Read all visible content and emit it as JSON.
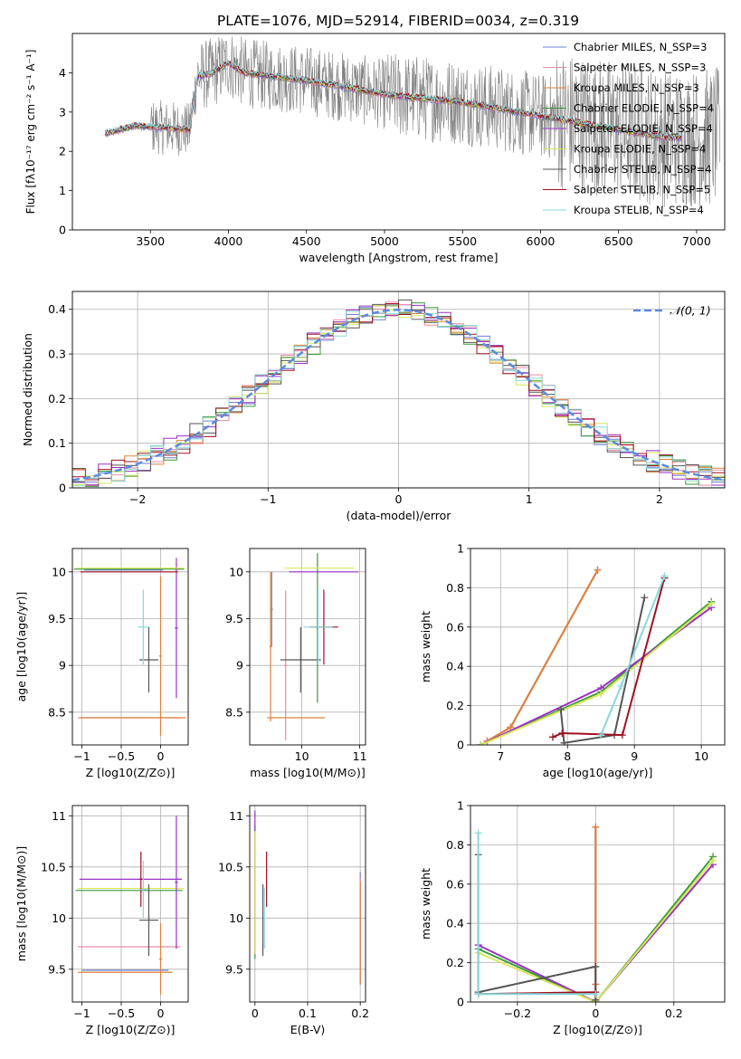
{
  "figure_title": "PLATE=1076, MJD=52914, FIBERID=0034, z=0.319",
  "colors": {
    "chabrier_miles": "#6f7fd8",
    "salpeter_miles": "#e88aa8",
    "kroupa_miles": "#e0823a",
    "chabrier_elodie": "#3c9a3c",
    "salpeter_elodie": "#9b30c8",
    "kroupa_elodie": "#d6e85a",
    "chabrier_stelib": "#555555",
    "salpeter_stelib": "#a01020",
    "kroupa_stelib": "#88d8dc",
    "data": "#7f7f7f",
    "gaussian": "#5b8be0"
  },
  "chart_data": [
    {
      "id": "spectrum",
      "type": "line",
      "xlabel": "wavelength [Angstrom, rest frame]",
      "ylabel": "Flux [fλ10⁻¹⁷ erg cm⁻² s⁻¹ A⁻¹]",
      "xlim": [
        3000,
        7180
      ],
      "ylim": [
        0,
        5
      ],
      "xticks": [
        3500,
        4000,
        4500,
        5000,
        5500,
        6000,
        6500,
        7000
      ],
      "yticks": [
        0,
        1,
        2,
        3,
        4
      ],
      "legend_position": "top-right",
      "legend": [
        {
          "label": "Chabrier MILES, N_SSP=3",
          "color_key": "chabrier_miles"
        },
        {
          "label": "Salpeter MILES, N_SSP=3",
          "color_key": "salpeter_miles"
        },
        {
          "label": "Kroupa MILES, N_SSP=3",
          "color_key": "kroupa_miles"
        },
        {
          "label": "Chabrier ELODIE, N_SSP=4",
          "color_key": "chabrier_elodie"
        },
        {
          "label": "Salpeter ELODIE, N_SSP=4",
          "color_key": "salpeter_elodie"
        },
        {
          "label": "Kroupa ELODIE, N_SSP=4",
          "color_key": "kroupa_elodie"
        },
        {
          "label": "Chabrier STELIB, N_SSP=4",
          "color_key": "chabrier_stelib"
        },
        {
          "label": "Salpeter STELIB, N_SSP=5",
          "color_key": "salpeter_stelib"
        },
        {
          "label": "Kroupa STELIB, N_SSP=4",
          "color_key": "kroupa_stelib"
        }
      ],
      "continuum": {
        "x": [
          3210,
          3400,
          3600,
          3750,
          3800,
          3900,
          4000,
          4100,
          4300,
          4500,
          4800,
          5000,
          5500,
          6000,
          6500,
          6800
        ],
        "y": [
          2.45,
          2.65,
          2.6,
          2.55,
          3.9,
          4.0,
          4.25,
          4.0,
          3.9,
          3.8,
          3.6,
          3.45,
          3.25,
          2.9,
          2.55,
          2.35
        ]
      },
      "model_range": [
        3210,
        6900
      ],
      "data_range": [
        3210,
        7150
      ]
    },
    {
      "id": "residuals",
      "type": "bar",
      "xlabel": "(data-model)/error",
      "ylabel": "Normed distribution",
      "xlim": [
        -2.5,
        2.5
      ],
      "ylim": [
        0,
        0.44
      ],
      "xticks": [
        -2,
        -1,
        0,
        1,
        2
      ],
      "yticks": [
        0.0,
        0.1,
        0.2,
        0.3,
        0.4
      ],
      "legend_position": "top-right",
      "legend_label": "𝒩(0, 1)",
      "bin_width": 0.1,
      "bins_start": -2.5
    },
    {
      "id": "age_vs_Z",
      "type": "scatter",
      "xlabel": "Z [log10(Z/Z⊙)]",
      "ylabel": "age  [log10(age/yr)]",
      "xlim": [
        -1.12,
        0.35
      ],
      "ylim": [
        8.15,
        10.25
      ],
      "xticks": [
        -1.0,
        -0.5,
        0.0
      ],
      "yticks": [
        8.5,
        9.0,
        9.5,
        10.0
      ],
      "points": [
        {
          "k": "chabrier_miles",
          "x": -0.47,
          "y": 10.02,
          "xe": 0.5,
          "ye": 0.0
        },
        {
          "k": "salpeter_miles",
          "x": -0.4,
          "y": 8.44,
          "xe": 0.65,
          "ye": 0.0
        },
        {
          "k": "kroupa_miles",
          "x": -0.35,
          "y": 8.44,
          "xe": 0.67,
          "ye": 0.0
        },
        {
          "k": "kroupa_miles",
          "x": 0.0,
          "y": 9.1,
          "xe": 0.02,
          "ye": 0.85
        },
        {
          "k": "chabrier_elodie",
          "x": -0.4,
          "y": 10.03,
          "xe": 0.7,
          "ye": 0.0
        },
        {
          "k": "salpeter_elodie",
          "x": 0.2,
          "y": 9.4,
          "xe": 0.02,
          "ye": 0.75
        },
        {
          "k": "kroupa_elodie",
          "x": -0.38,
          "y": 10.04,
          "xe": 0.68,
          "ye": 0.0
        },
        {
          "k": "chabrier_stelib",
          "x": -0.15,
          "y": 9.06,
          "xe": 0.12,
          "ye": 0.35
        },
        {
          "k": "salpeter_stelib",
          "x": -0.4,
          "y": 10.0,
          "xe": 0.62,
          "ye": 0.0
        },
        {
          "k": "kroupa_stelib",
          "x": -0.22,
          "y": 9.41,
          "xe": 0.07,
          "ye": 0.4
        }
      ]
    },
    {
      "id": "age_vs_mass",
      "type": "scatter",
      "xlabel": "mass [log10(M/M⊙)]",
      "ylabel": "",
      "xlim": [
        9.1,
        11.1
      ],
      "ylim": [
        8.15,
        10.25
      ],
      "xticks": [
        10,
        11
      ],
      "yticks": [
        8.5,
        9.0,
        9.5,
        10.0
      ],
      "points": [
        {
          "k": "chabrier_miles",
          "x": 9.48,
          "y": 9.6,
          "xe": 0.02,
          "ye": 0.4
        },
        {
          "k": "salpeter_miles",
          "x": 9.72,
          "y": 9.0,
          "xe": 0.02,
          "ye": 0.8
        },
        {
          "k": "kroupa_miles",
          "x": 9.9,
          "y": 8.44,
          "xe": 0.5,
          "ye": 0.0
        },
        {
          "k": "kroupa_miles",
          "x": 9.46,
          "y": 9.2,
          "xe": 0.02,
          "ye": 0.8
        },
        {
          "k": "chabrier_elodie",
          "x": 10.27,
          "y": 9.4,
          "xe": 0.02,
          "ye": 0.8
        },
        {
          "k": "salpeter_elodie",
          "x": 10.38,
          "y": 10.0,
          "xe": 0.6,
          "ye": 0.0
        },
        {
          "k": "kroupa_elodie",
          "x": 10.3,
          "y": 10.04,
          "xe": 0.6,
          "ye": 0.0
        },
        {
          "k": "chabrier_stelib",
          "x": 9.98,
          "y": 9.06,
          "xe": 0.35,
          "ye": 0.35
        },
        {
          "k": "salpeter_stelib",
          "x": 10.38,
          "y": 9.41,
          "xe": 0.25,
          "ye": 0.4
        },
        {
          "k": "kroupa_stelib",
          "x": 10.28,
          "y": 9.41,
          "xe": 0.25,
          "ye": 0.4
        }
      ]
    },
    {
      "id": "massweight_vs_age",
      "type": "line",
      "xlabel": "age  [log10(age/yr)]",
      "ylabel": "mass weight",
      "xlim": [
        6.55,
        10.35
      ],
      "ylim": [
        0,
        1.0
      ],
      "xticks": [
        7,
        8,
        9,
        10
      ],
      "yticks": [
        0.0,
        0.2,
        0.4,
        0.6,
        0.8,
        1.0
      ],
      "series": [
        {
          "k": "chabrier_miles",
          "x": [
            6.8,
            7.15,
            8.45
          ],
          "y": [
            0.02,
            0.09,
            0.89
          ]
        },
        {
          "k": "salpeter_miles",
          "x": [
            6.8,
            7.15,
            8.45
          ],
          "y": [
            0.02,
            0.09,
            0.89
          ]
        },
        {
          "k": "kroupa_miles",
          "x": [
            6.8,
            7.15,
            8.45
          ],
          "y": [
            0.02,
            0.09,
            0.89
          ]
        },
        {
          "k": "chabrier_elodie",
          "x": [
            6.7,
            8.5,
            10.15
          ],
          "y": [
            0.0,
            0.27,
            0.73
          ]
        },
        {
          "k": "salpeter_elodie",
          "x": [
            6.7,
            8.5,
            10.15
          ],
          "y": [
            0.0,
            0.29,
            0.7
          ]
        },
        {
          "k": "kroupa_elodie",
          "x": [
            6.7,
            8.5,
            10.15
          ],
          "y": [
            0.0,
            0.26,
            0.72
          ]
        },
        {
          "k": "chabrier_stelib",
          "x": [
            7.9,
            7.95,
            8.7,
            9.15
          ],
          "y": [
            0.18,
            0.01,
            0.05,
            0.75
          ]
        },
        {
          "k": "salpeter_stelib",
          "x": [
            7.78,
            7.92,
            8.82,
            9.45
          ],
          "y": [
            0.04,
            0.06,
            0.05,
            0.85
          ]
        },
        {
          "k": "kroupa_stelib",
          "x": [
            8.5,
            8.8,
            9.45
          ],
          "y": [
            0.05,
            0.3,
            0.86
          ]
        }
      ]
    },
    {
      "id": "mass_vs_Z",
      "type": "scatter",
      "xlabel": "Z [log10(Z/Z⊙)]",
      "ylabel": "mass [log10(M/M⊙)]",
      "xlim": [
        -1.12,
        0.35
      ],
      "ylim": [
        9.18,
        11.1
      ],
      "xticks": [
        -1.0,
        -0.5,
        0.0
      ],
      "yticks": [
        9.5,
        10.0,
        10.5,
        11.0
      ],
      "points": [
        {
          "k": "chabrier_miles",
          "x": -0.45,
          "y": 9.49,
          "xe": 0.55,
          "ye": 0.0
        },
        {
          "k": "salpeter_miles",
          "x": -0.4,
          "y": 9.72,
          "xe": 0.65,
          "ye": 0.0
        },
        {
          "k": "kroupa_miles",
          "x": -0.45,
          "y": 9.47,
          "xe": 0.6,
          "ye": 0.0
        },
        {
          "k": "kroupa_miles",
          "x": 0.0,
          "y": 9.6,
          "xe": 0.02,
          "ye": 0.35
        },
        {
          "k": "chabrier_elodie",
          "x": -0.4,
          "y": 10.27,
          "xe": 0.68,
          "ye": 0.0
        },
        {
          "k": "salpeter_elodie",
          "x": -0.38,
          "y": 10.38,
          "xe": 0.65,
          "ye": 0.0
        },
        {
          "k": "kroupa_elodie",
          "x": -0.38,
          "y": 10.29,
          "xe": 0.68,
          "ye": 0.0
        },
        {
          "k": "salpeter_elodie",
          "x": 0.2,
          "y": 10.35,
          "xe": 0.02,
          "ye": 0.65
        },
        {
          "k": "chabrier_stelib",
          "x": -0.15,
          "y": 9.98,
          "xe": 0.12,
          "ye": 0.35
        },
        {
          "k": "salpeter_stelib",
          "x": -0.25,
          "y": 10.38,
          "xe": 0.02,
          "ye": 0.27
        },
        {
          "k": "kroupa_stelib",
          "x": -0.22,
          "y": 10.28,
          "xe": 0.05,
          "ye": 0.28
        }
      ]
    },
    {
      "id": "mass_vs_ebv",
      "type": "scatter",
      "xlabel": "E(B-V)",
      "ylabel": "",
      "xlim": [
        -0.01,
        0.21
      ],
      "ylim": [
        9.18,
        11.1
      ],
      "xticks": [
        0.0,
        0.1,
        0.2
      ],
      "yticks": [
        9.5,
        10.0,
        10.5,
        11.0
      ],
      "points": [
        {
          "k": "chabrier_miles",
          "x": 0.2,
          "y": 9.9,
          "xe": 0.0,
          "ye": 0.55
        },
        {
          "k": "salpeter_miles",
          "x": 0.2,
          "y": 9.9,
          "xe": 0.0,
          "ye": 0.5
        },
        {
          "k": "kroupa_miles",
          "x": 0.2,
          "y": 9.85,
          "xe": 0.0,
          "ye": 0.5
        },
        {
          "k": "chabrier_elodie",
          "x": 0.0,
          "y": 10.25,
          "xe": 0.0,
          "ye": 0.65
        },
        {
          "k": "salpeter_elodie",
          "x": 0.0,
          "y": 10.35,
          "xe": 0.0,
          "ye": 0.7
        },
        {
          "k": "kroupa_elodie",
          "x": 0.0,
          "y": 10.25,
          "xe": 0.0,
          "ye": 0.6
        },
        {
          "k": "chabrier_stelib",
          "x": 0.015,
          "y": 9.98,
          "xe": 0.0,
          "ye": 0.35
        },
        {
          "k": "salpeter_stelib",
          "x": 0.022,
          "y": 10.38,
          "xe": 0.0,
          "ye": 0.27
        },
        {
          "k": "kroupa_stelib",
          "x": 0.018,
          "y": 10.0,
          "xe": 0.0,
          "ye": 0.3
        }
      ]
    },
    {
      "id": "massweight_vs_Z",
      "type": "line",
      "xlabel": "Z [log10(Z/Z⊙)]",
      "ylabel": "mass weight",
      "xlim": [
        -0.32,
        0.33
      ],
      "ylim": [
        0,
        1.0
      ],
      "xticks": [
        -0.2,
        0.0,
        0.2
      ],
      "yticks": [
        0.0,
        0.2,
        0.4,
        0.6,
        0.8,
        1.0
      ],
      "series": [
        {
          "k": "chabrier_miles",
          "x": [
            0.0,
            0.0,
            0.0
          ],
          "y": [
            0.01,
            0.09,
            0.89
          ]
        },
        {
          "k": "salpeter_miles",
          "x": [
            0.0,
            0.0,
            0.0
          ],
          "y": [
            0.01,
            0.09,
            0.89
          ]
        },
        {
          "k": "kroupa_miles",
          "x": [
            0.0,
            0.0,
            0.0
          ],
          "y": [
            0.01,
            0.09,
            0.89
          ]
        },
        {
          "k": "chabrier_elodie",
          "x": [
            -0.3,
            0.0,
            0.3
          ],
          "y": [
            0.27,
            0.0,
            0.74
          ]
        },
        {
          "k": "salpeter_elodie",
          "x": [
            -0.3,
            0.0,
            0.3
          ],
          "y": [
            0.29,
            0.0,
            0.7
          ]
        },
        {
          "k": "kroupa_elodie",
          "x": [
            -0.3,
            0.0,
            0.3
          ],
          "y": [
            0.25,
            0.0,
            0.72
          ]
        },
        {
          "k": "chabrier_stelib",
          "x": [
            -0.3,
            -0.3,
            0.0,
            0.0
          ],
          "y": [
            0.75,
            0.05,
            0.18,
            0.01
          ]
        },
        {
          "k": "salpeter_stelib",
          "x": [
            -0.3,
            0.0
          ],
          "y": [
            0.04,
            0.05
          ]
        },
        {
          "k": "kroupa_stelib",
          "x": [
            -0.3,
            -0.3,
            0.0
          ],
          "y": [
            0.86,
            0.04,
            0.04
          ]
        }
      ]
    }
  ]
}
